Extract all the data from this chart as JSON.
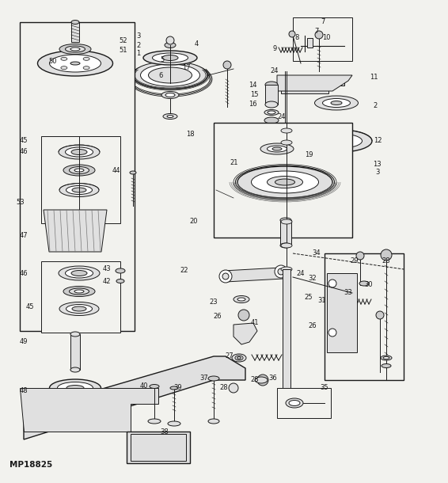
{
  "background_color": "#f2f2ee",
  "line_color": "#1a1a1a",
  "watermark": "MP18825",
  "figsize": [
    5.66,
    6.1
  ],
  "dpi": 100
}
